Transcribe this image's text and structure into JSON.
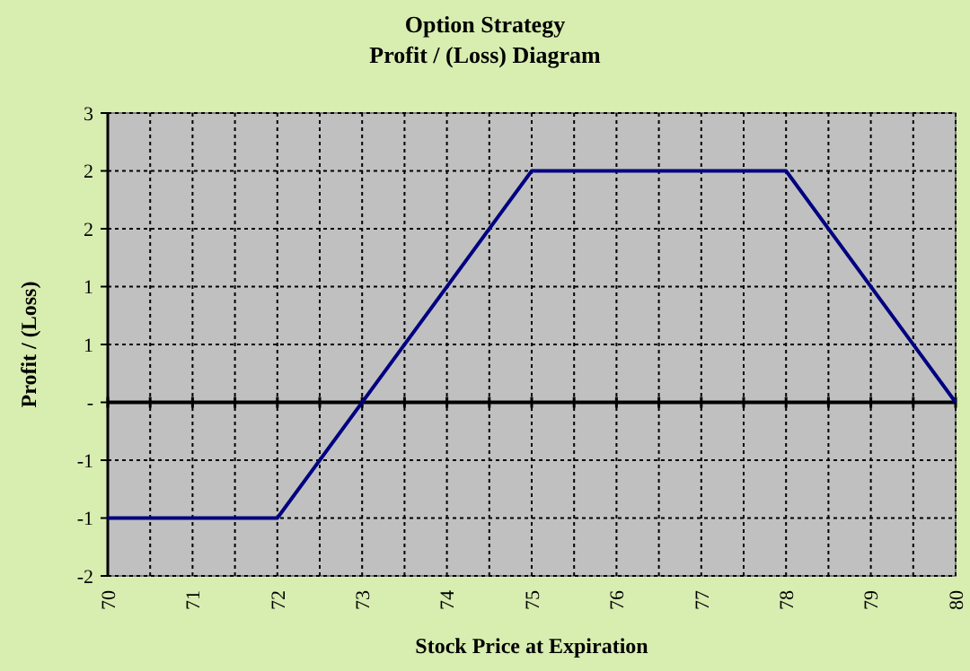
{
  "chart_data": {
    "type": "line",
    "title": "Option Strategy",
    "subtitle": "Profit / (Loss) Diagram",
    "xlabel": "Stock Price at Expiration",
    "ylabel": "Profit / (Loss)",
    "x": [
      70,
      72,
      75,
      78,
      80
    ],
    "series": [
      {
        "color": "#000080",
        "values": [
          -1.2,
          -1.2,
          2.4,
          2.4,
          0
        ]
      }
    ],
    "xlim": [
      70,
      80
    ],
    "xticks": [
      70,
      {
        "value": 70.5,
        "label": null
      },
      71,
      {
        "value": 71.5,
        "label": null
      },
      72,
      {
        "value": 72.5,
        "label": null
      },
      73,
      {
        "value": 73.5,
        "label": null
      },
      74,
      {
        "value": 74.5,
        "label": null
      },
      75,
      {
        "value": 75.5,
        "label": null
      },
      76,
      {
        "value": 76.5,
        "label": null
      },
      77,
      {
        "value": 77.5,
        "label": null
      },
      78,
      {
        "value": 78.5,
        "label": null
      },
      79,
      {
        "value": 79.5,
        "label": null
      },
      80
    ],
    "ylim": [
      -1.8,
      3
    ],
    "yticks": [
      {
        "value": 3,
        "label": "3"
      },
      {
        "value": 2.4,
        "label": "2"
      },
      {
        "value": 1.8,
        "label": "2"
      },
      {
        "value": 1.2,
        "label": "1"
      },
      {
        "value": 0.6,
        "label": "1"
      },
      {
        "value": 0,
        "label": "-"
      },
      {
        "value": -0.6,
        "label": "-1"
      },
      {
        "value": -1.2,
        "label": "-1"
      },
      {
        "value": -1.8,
        "label": "-2"
      }
    ],
    "ref_lines": [
      {
        "axis": "y",
        "value": 0,
        "color": "#000000"
      }
    ],
    "grid": true,
    "marker": "none",
    "line_style": "solid"
  }
}
